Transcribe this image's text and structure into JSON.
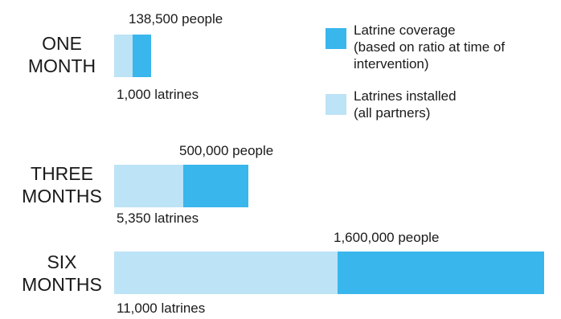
{
  "chart_data": {
    "type": "bar",
    "orientation": "horizontal",
    "stacked": true,
    "categories": [
      [
        "ONE",
        "MONTH"
      ],
      [
        "THREE",
        "MONTHS"
      ],
      [
        "SIX",
        "MONTHS"
      ]
    ],
    "series": [
      {
        "name": [
          "Latrines installed",
          "(all partners)"
        ],
        "color": "#bde3f6",
        "values": [
          1000,
          5350,
          11000
        ],
        "labels": [
          "1,000 latrines",
          "5,350 latrines",
          "11,000 latrines"
        ]
      },
      {
        "name": [
          "Latrine coverage",
          "(based on ratio at time of",
          "intervention)"
        ],
        "color": "#39b6ec",
        "values": [
          138500,
          500000,
          1600000
        ],
        "labels": [
          "138,500 people",
          "500,000 people",
          "1,600,000 people"
        ]
      }
    ],
    "legend_position": "top-right",
    "legend_order": [
      1,
      0
    ],
    "grid": false,
    "axes_visible": false
  }
}
